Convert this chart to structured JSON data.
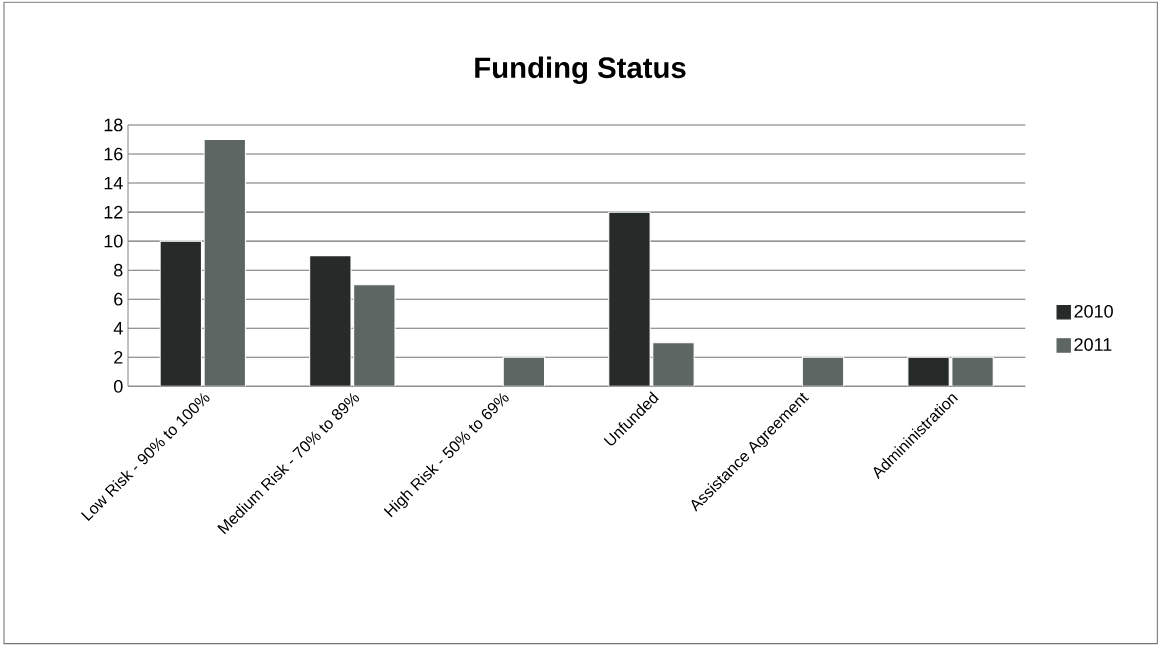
{
  "chart_data": {
    "type": "bar",
    "title": "Funding Status",
    "categories": [
      "Low Risk - 90% to 100%",
      "Medium Risk - 70% to 89%",
      "High Risk - 50% to 69%",
      "Unfunded",
      "Assistance Agreement",
      "Admininistration"
    ],
    "series": [
      {
        "name": "2010",
        "color": "#262a28",
        "values": [
          10,
          9,
          null,
          12,
          null,
          2
        ]
      },
      {
        "name": "2011",
        "color": "#5d6663",
        "values": [
          17,
          7,
          2,
          3,
          2,
          2
        ]
      }
    ],
    "ylim": [
      0,
      18
    ],
    "yticks": [
      0,
      2,
      4,
      6,
      8,
      10,
      12,
      14,
      16,
      18
    ],
    "grid": "y",
    "legend": "right"
  }
}
